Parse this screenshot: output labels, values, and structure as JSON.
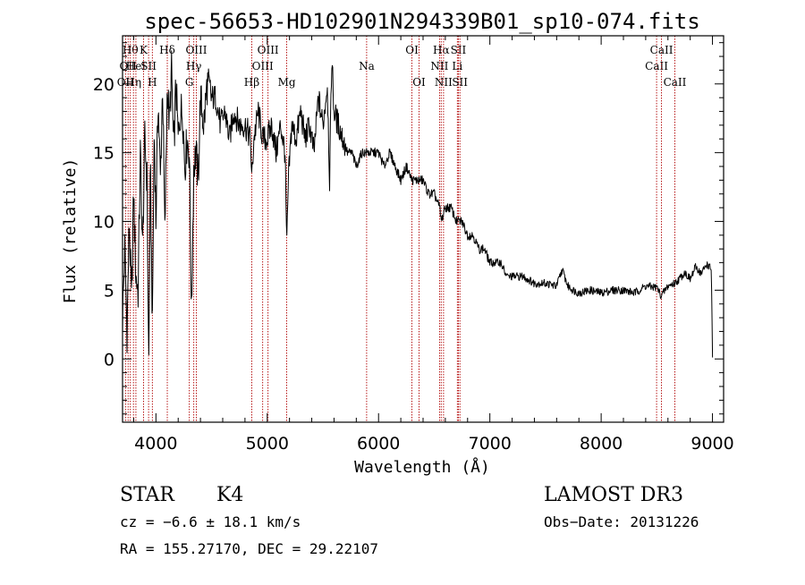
{
  "chart_data": {
    "type": "line",
    "title": "spec-56653-HD102901N294339B01_sp10-074.fits",
    "xlabel": "Wavelength (Å)",
    "ylabel": "Flux (relative)",
    "xlim": [
      3700,
      9100
    ],
    "ylim": [
      -4.6,
      23.5
    ],
    "x_ticks": [
      {
        "value": 4000,
        "label": "4000"
      },
      {
        "value": 5000,
        "label": "5000"
      },
      {
        "value": 6000,
        "label": "6000"
      },
      {
        "value": 7000,
        "label": "7000"
      },
      {
        "value": 8000,
        "label": "8000"
      },
      {
        "value": 9000,
        "label": "9000"
      }
    ],
    "y_ticks": [
      {
        "value": 0,
        "label": "0"
      },
      {
        "value": 5,
        "label": "5"
      },
      {
        "value": 10,
        "label": "10"
      },
      {
        "value": 15,
        "label": "15"
      },
      {
        "value": 20,
        "label": "20"
      }
    ],
    "line_color": "#000000",
    "line_marker_color": "#b00000",
    "series": [
      {
        "name": "flux",
        "x": [
          3700,
          3720,
          3740,
          3760,
          3780,
          3800,
          3820,
          3840,
          3860,
          3880,
          3900,
          3920,
          3935,
          3950,
          3968,
          3985,
          4000,
          4020,
          4040,
          4060,
          4080,
          4102,
          4120,
          4140,
          4160,
          4180,
          4200,
          4220,
          4240,
          4260,
          4280,
          4300,
          4320,
          4340,
          4360,
          4380,
          4400,
          4430,
          4460,
          4500,
          4540,
          4580,
          4620,
          4660,
          4700,
          4750,
          4800,
          4850,
          4861,
          4880,
          4920,
          4960,
          5000,
          5040,
          5080,
          5120,
          5160,
          5175,
          5190,
          5220,
          5260,
          5300,
          5340,
          5380,
          5420,
          5460,
          5500,
          5540,
          5560,
          5580,
          5600,
          5640,
          5680,
          5720,
          5760,
          5800,
          5850,
          5893,
          5940,
          6000,
          6050,
          6100,
          6150,
          6200,
          6250,
          6300,
          6350,
          6400,
          6450,
          6500,
          6550,
          6563,
          6600,
          6650,
          6700,
          6750,
          6800,
          6850,
          6900,
          6950,
          7000,
          7050,
          7100,
          7150,
          7200,
          7300,
          7400,
          7500,
          7600,
          7650,
          7700,
          7750,
          7800,
          7900,
          8000,
          8100,
          8200,
          8300,
          8400,
          8500,
          8540,
          8600,
          8660,
          8700,
          8750,
          8800,
          8850,
          8900,
          8950,
          8990,
          9000
        ],
        "y": [
          3,
          8,
          2,
          10,
          4,
          12,
          6,
          5,
          15,
          8,
          16,
          13,
          -1,
          14,
          2,
          17,
          10,
          19,
          13,
          20,
          9,
          20,
          17,
          21,
          15,
          20,
          16,
          18,
          18,
          14,
          16,
          15,
          3,
          14,
          15,
          13,
          19,
          17,
          20,
          19,
          19,
          17,
          18,
          16,
          18,
          17,
          17,
          16,
          13,
          16,
          18,
          16,
          16,
          17,
          15,
          17,
          15,
          8,
          13,
          17,
          16,
          18,
          16,
          17,
          15,
          19,
          17,
          20,
          13,
          22,
          18,
          17,
          16,
          15,
          15,
          14,
          15,
          15,
          15,
          15,
          14,
          15,
          14,
          13,
          14,
          13,
          13,
          13,
          12,
          12,
          11,
          10,
          11,
          11,
          10,
          10,
          9,
          9,
          8,
          8,
          7,
          7,
          7,
          6,
          6,
          6,
          5.5,
          5.5,
          5.3,
          6.5,
          5.3,
          5,
          4.8,
          5,
          4.8,
          5,
          5,
          4.8,
          5.3,
          5.2,
          4.6,
          5.3,
          5.5,
          5.8,
          6.3,
          5.8,
          6.7,
          6.2,
          6.9,
          6.5,
          0
        ]
      }
    ],
    "lines": [
      {
        "x": 3727,
        "label": "OII",
        "row": 2
      },
      {
        "x": 3750,
        "label": "OII",
        "row": 1
      },
      {
        "x": 3770,
        "label": "Hθ",
        "row": 0
      },
      {
        "x": 3798,
        "label": "Hη",
        "row": 2
      },
      {
        "x": 3820,
        "label": "HeI",
        "row": 1
      },
      {
        "x": 3889,
        "label": "K",
        "row": 0
      },
      {
        "x": 3934,
        "label": "SII",
        "row": 1
      },
      {
        "x": 3968,
        "label": "H",
        "row": 2
      },
      {
        "x": 4102,
        "label": "Hδ",
        "row": 0
      },
      {
        "x": 4300,
        "label": "G",
        "row": 2
      },
      {
        "x": 4340,
        "label": "Hγ",
        "row": 1
      },
      {
        "x": 4363,
        "label": "OIII",
        "row": 0
      },
      {
        "x": 4861,
        "label": "Hβ",
        "row": 2
      },
      {
        "x": 4959,
        "label": "OIII",
        "row": 1
      },
      {
        "x": 5007,
        "label": "OIII",
        "row": 0
      },
      {
        "x": 5175,
        "label": "Mg",
        "row": 2
      },
      {
        "x": 5893,
        "label": "Na",
        "row": 1
      },
      {
        "x": 6300,
        "label": "OI",
        "row": 0
      },
      {
        "x": 6364,
        "label": "OI",
        "row": 2
      },
      {
        "x": 6548,
        "label": "NII",
        "row": 1
      },
      {
        "x": 6563,
        "label": "Hα",
        "row": 0
      },
      {
        "x": 6584,
        "label": "NII",
        "row": 2
      },
      {
        "x": 6708,
        "label": "Li",
        "row": 1
      },
      {
        "x": 6717,
        "label": "SII",
        "row": 0
      },
      {
        "x": 6731,
        "label": "SII",
        "row": 2
      },
      {
        "x": 8498,
        "label": "CaII",
        "row": 1
      },
      {
        "x": 8542,
        "label": "CaII",
        "row": 0
      },
      {
        "x": 8662,
        "label": "CaII",
        "row": 2
      }
    ]
  },
  "info": {
    "class": "STAR",
    "subclass": "K4",
    "survey": "LAMOST DR3",
    "cz": "cz = −6.6 ± 18.1 km/s",
    "obs_date": "Obs−Date: 20131226",
    "coords": "RA = 155.27170, DEC =  29.22107"
  }
}
